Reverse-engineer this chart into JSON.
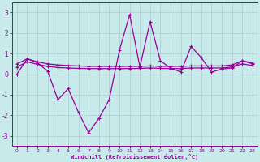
{
  "x": [
    0,
    1,
    2,
    3,
    4,
    5,
    6,
    7,
    8,
    9,
    10,
    11,
    12,
    13,
    14,
    15,
    16,
    17,
    18,
    19,
    20,
    21,
    22,
    23
  ],
  "y_main": [
    0.0,
    0.75,
    0.55,
    0.15,
    -1.25,
    -0.7,
    -1.85,
    -2.85,
    -2.15,
    -1.25,
    1.15,
    2.9,
    0.35,
    2.55,
    0.65,
    0.3,
    0.1,
    1.35,
    0.8,
    0.1,
    0.25,
    0.3,
    0.65,
    0.5
  ],
  "y_upper": [
    0.5,
    0.75,
    0.6,
    0.5,
    0.45,
    0.42,
    0.4,
    0.38,
    0.38,
    0.38,
    0.38,
    0.38,
    0.38,
    0.4,
    0.38,
    0.38,
    0.38,
    0.4,
    0.4,
    0.4,
    0.4,
    0.45,
    0.65,
    0.55
  ],
  "y_lower": [
    0.35,
    0.6,
    0.48,
    0.38,
    0.32,
    0.3,
    0.28,
    0.27,
    0.27,
    0.27,
    0.27,
    0.27,
    0.28,
    0.3,
    0.28,
    0.27,
    0.27,
    0.3,
    0.3,
    0.3,
    0.3,
    0.35,
    0.5,
    0.42
  ],
  "bg_color": "#c8eaea",
  "line_color": "#990099",
  "grid_color": "#aacccc",
  "xlabel": "Windchill (Refroidissement éolien,°C)",
  "ylim": [
    -3.5,
    3.5
  ],
  "xlim": [
    -0.5,
    23.5
  ],
  "yticks": [
    -3,
    -2,
    -1,
    0,
    1,
    2,
    3
  ],
  "xticks": [
    0,
    1,
    2,
    3,
    4,
    5,
    6,
    7,
    8,
    9,
    10,
    11,
    12,
    13,
    14,
    15,
    16,
    17,
    18,
    19,
    20,
    21,
    22,
    23
  ]
}
